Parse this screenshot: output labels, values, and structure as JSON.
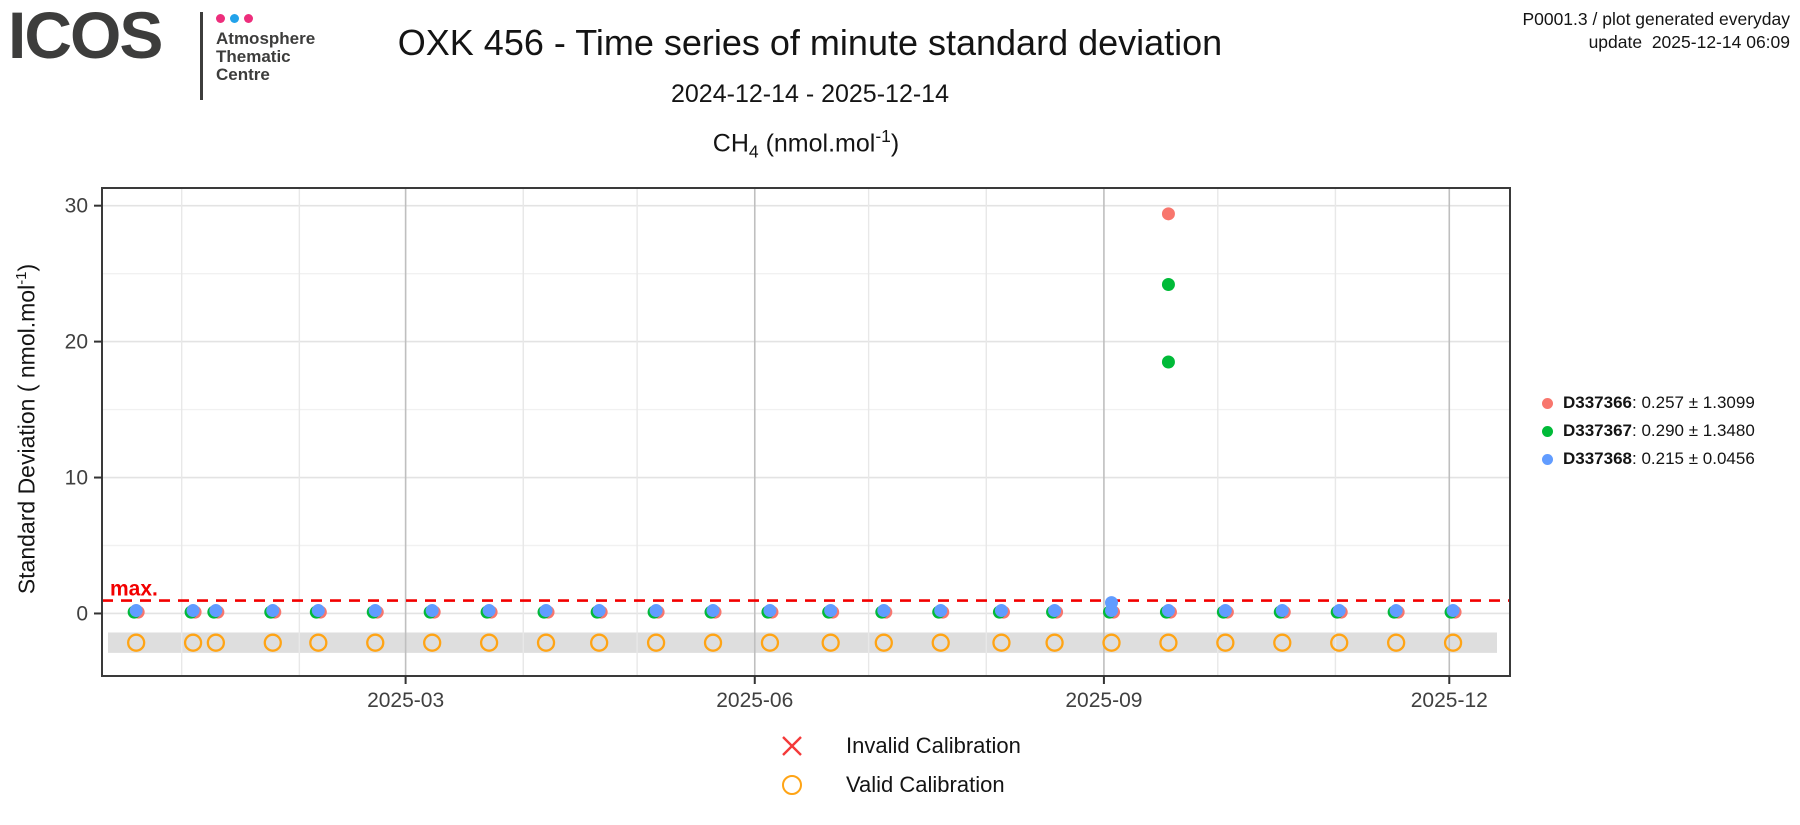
{
  "header": {
    "logo": {
      "brand": "ICOS",
      "dot_colors": [
        "#ED2E7C",
        "#22A2EA",
        "#ED2E7C"
      ],
      "org_lines": [
        "Atmosphere",
        "Thematic",
        "Centre"
      ]
    },
    "title": "OXK 456 - Time series of minute standard deviation",
    "subtitle": "2024-12-14 - 2025-12-14",
    "info_line1": "P0001.3 / plot generated everyday",
    "info_line2": "update  2025-12-14 06:09"
  },
  "chart_data": {
    "type": "scatter",
    "title_parts": {
      "pre": "CH",
      "sub": "4",
      "mid": " (nmol.mol",
      "sup": "-1",
      "post": ")"
    },
    "ylabel_parts": {
      "pre": "Standard Deviation ( nmol.mol",
      "sup": "-1",
      "post": ")"
    },
    "x_domain": [
      "2024-12-11",
      "2025-12-17"
    ],
    "y_domain": [
      -4.6,
      31.3
    ],
    "y_ticks": [
      0,
      10,
      20,
      30
    ],
    "y_minor": [
      5,
      15,
      25
    ],
    "x_ticks": [
      {
        "label": "2025-03",
        "date": "2025-03-01"
      },
      {
        "label": "2025-06",
        "date": "2025-06-01"
      },
      {
        "label": "2025-09",
        "date": "2025-09-01"
      },
      {
        "label": "2025-12",
        "date": "2025-12-01"
      }
    ],
    "x_minor": [
      "2025-01-01",
      "2025-02-01",
      "2025-04-01",
      "2025-05-01",
      "2025-07-01",
      "2025-08-01",
      "2025-10-01",
      "2025-11-01"
    ],
    "max_line": {
      "value": 0.95,
      "label": "max.",
      "color": "#F20000"
    },
    "series": [
      {
        "id": "D337366",
        "color": "#F8766D",
        "typical_sd": 0.26
      },
      {
        "id": "D337367",
        "color": "#00BA38",
        "typical_sd": 0.29
      },
      {
        "id": "D337368",
        "color": "#619CFF",
        "typical_sd": 0.215
      }
    ],
    "calibration_events": [
      {
        "date": "2024-12-20",
        "valid": true
      },
      {
        "date": "2025-01-04",
        "valid": true
      },
      {
        "date": "2025-01-10",
        "valid": true
      },
      {
        "date": "2025-01-25",
        "valid": true
      },
      {
        "date": "2025-02-06",
        "valid": true
      },
      {
        "date": "2025-02-21",
        "valid": true
      },
      {
        "date": "2025-03-08",
        "valid": true
      },
      {
        "date": "2025-03-23",
        "valid": true
      },
      {
        "date": "2025-04-07",
        "valid": true
      },
      {
        "date": "2025-04-21",
        "valid": true
      },
      {
        "date": "2025-05-06",
        "valid": true
      },
      {
        "date": "2025-05-21",
        "valid": true
      },
      {
        "date": "2025-06-05",
        "valid": true
      },
      {
        "date": "2025-06-21",
        "valid": true
      },
      {
        "date": "2025-07-05",
        "valid": true
      },
      {
        "date": "2025-07-20",
        "valid": true
      },
      {
        "date": "2025-08-05",
        "valid": true
      },
      {
        "date": "2025-08-19",
        "valid": true
      },
      {
        "date": "2025-09-03",
        "valid": true
      },
      {
        "date": "2025-09-18",
        "valid": true
      },
      {
        "date": "2025-10-03",
        "valid": true
      },
      {
        "date": "2025-10-18",
        "valid": true
      },
      {
        "date": "2025-11-02",
        "valid": true
      },
      {
        "date": "2025-11-17",
        "valid": true
      },
      {
        "date": "2025-12-02",
        "valid": true
      }
    ],
    "outliers": [
      {
        "date": "2025-09-18",
        "series": "D337366",
        "value": 29.4
      },
      {
        "date": "2025-09-18",
        "series": "D337367",
        "value": 24.2
      },
      {
        "date": "2025-09-18",
        "series": "D337367",
        "value": 18.5
      },
      {
        "date": "2025-09-03",
        "series": "D337368",
        "value": 0.8
      }
    ],
    "band": {
      "y_top": -1.4,
      "y_bottom": -2.9,
      "color": "#dcdcdc"
    },
    "grid": {
      "h_major": "#e3e3e3",
      "h_minor": "#f1f1f1",
      "v_major": "#bfbfbf",
      "v_minor": "#e8e8e8"
    }
  },
  "legend": {
    "items": [
      {
        "series": "D337366",
        "stats": ": 0.257 ± 1.3099",
        "color": "#F8766D"
      },
      {
        "series": "D337367",
        "stats": ": 0.290 ± 1.3480",
        "color": "#00BA38"
      },
      {
        "series": "D337368",
        "stats": ": 0.215 ± 0.0456",
        "color": "#619CFF"
      }
    ]
  },
  "calibration_legend": {
    "invalid": {
      "label": "Invalid Calibration",
      "color": "#F43A3A"
    },
    "valid": {
      "label": "Valid Calibration",
      "color": "#FFA415"
    }
  }
}
